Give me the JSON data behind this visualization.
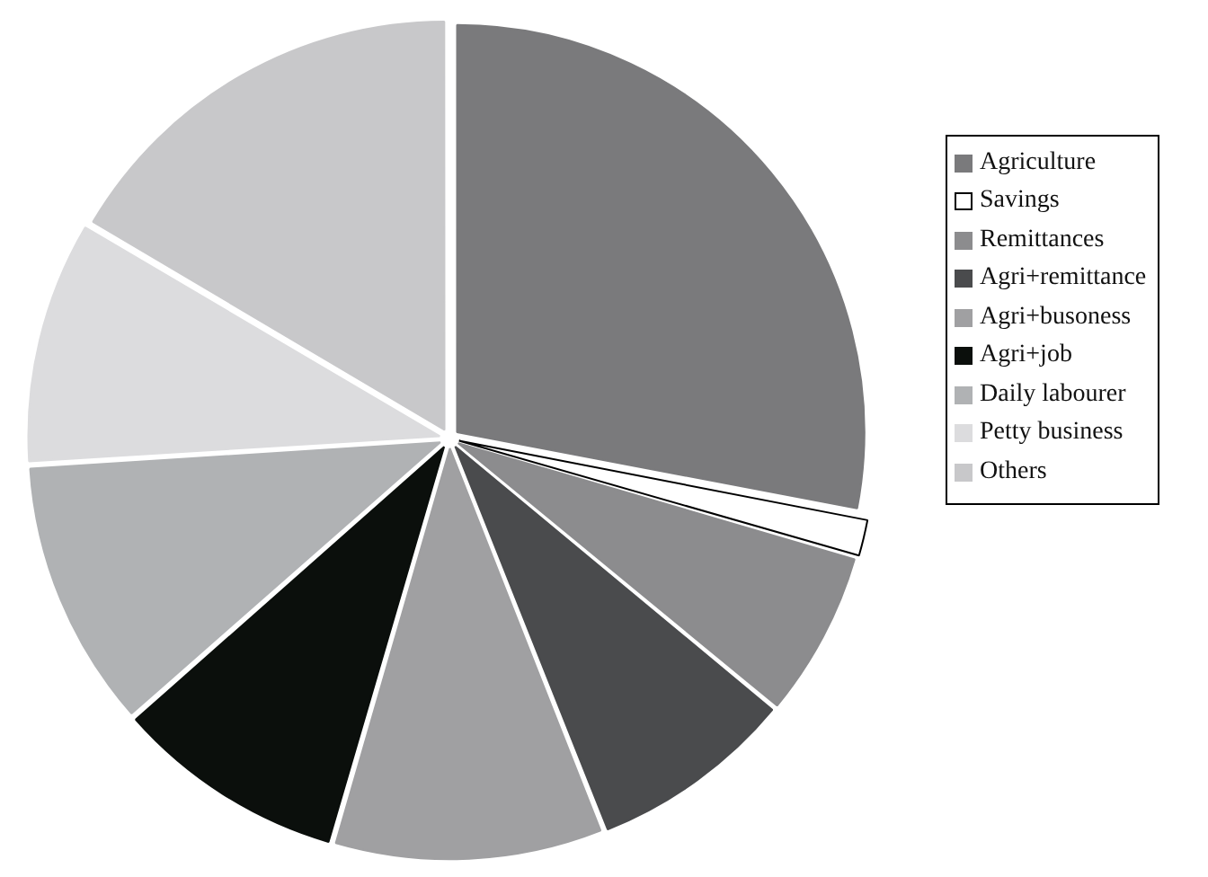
{
  "chart_data": {
    "type": "pie",
    "categories": [
      "Agriculture",
      "Savings",
      "Remittances",
      "Agri+remittance",
      "Agri+busoness",
      "Agri+job",
      "Daily labourer",
      "Petty business",
      "Others"
    ],
    "values": [
      28,
      1.5,
      6.5,
      8,
      10.5,
      9,
      10.5,
      9.5,
      16.5
    ],
    "colors": [
      "#7a7a7c",
      "#ffffff",
      "#8c8c8e",
      "#4a4b4d",
      "#a0a0a2",
      "#0b0f0c",
      "#b0b2b4",
      "#dcdcde",
      "#c8c8ca"
    ],
    "legend": "right"
  }
}
